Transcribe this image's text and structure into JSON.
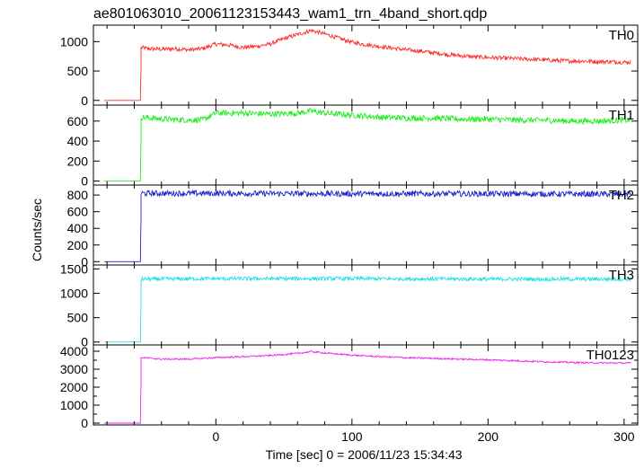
{
  "chart_data": {
    "type": "line",
    "title": "ae801063010_20061123153443_wam1_trn_4band_short.qdp",
    "xlabel": "Time [sec] 0 = 2006/11/23 15:34:43",
    "ylabel": "Counts/sec",
    "xlim": [
      -90,
      310
    ],
    "xticks": [
      0,
      100,
      200,
      300
    ],
    "onset_time": -55,
    "panels": [
      {
        "name": "TH0",
        "color": "#ff2a2a",
        "ylim": [
          -80,
          1280
        ],
        "yticks": [
          0,
          500,
          1000
        ],
        "pre_level": 0,
        "x": [
          -55,
          -50,
          -40,
          -30,
          -20,
          -10,
          0,
          10,
          20,
          30,
          40,
          50,
          60,
          70,
          80,
          90,
          100,
          110,
          120,
          130,
          140,
          150,
          160,
          170,
          180,
          190,
          200,
          210,
          220,
          230,
          240,
          250,
          260,
          270,
          280,
          290,
          300,
          305
        ],
        "y": [
          900,
          880,
          870,
          880,
          860,
          880,
          960,
          940,
          900,
          920,
          960,
          1050,
          1120,
          1190,
          1130,
          1060,
          990,
          950,
          920,
          890,
          860,
          840,
          810,
          780,
          760,
          740,
          730,
          720,
          710,
          700,
          690,
          680,
          670,
          670,
          660,
          660,
          650,
          650
        ],
        "noise": 35
      },
      {
        "name": "TH1",
        "color": "#22ee22",
        "ylim": [
          -40,
          760
        ],
        "yticks": [
          0,
          200,
          400,
          600
        ],
        "pre_level": 0,
        "x": [
          -55,
          -40,
          -20,
          -10,
          0,
          20,
          40,
          60,
          70,
          80,
          100,
          120,
          140,
          160,
          180,
          200,
          220,
          240,
          260,
          280,
          300,
          305
        ],
        "y": [
          640,
          620,
          610,
          610,
          680,
          680,
          670,
          680,
          700,
          680,
          660,
          640,
          630,
          630,
          620,
          620,
          610,
          610,
          600,
          600,
          610,
          610
        ],
        "noise": 30
      },
      {
        "name": "TH2",
        "color": "#2020cc",
        "ylim": [
          -40,
          920
        ],
        "yticks": [
          0,
          200,
          400,
          600,
          800
        ],
        "pre_level": 0,
        "x": [
          -55,
          0,
          100,
          200,
          305
        ],
        "y": [
          820,
          820,
          815,
          815,
          810
        ],
        "noise": 35
      },
      {
        "name": "TH3",
        "color": "#22e0e0",
        "ylim": [
          -60,
          1580
        ],
        "yticks": [
          0,
          500,
          1000,
          1500
        ],
        "pre_level": 0,
        "x": [
          -55,
          0,
          100,
          200,
          305
        ],
        "y": [
          1290,
          1300,
          1300,
          1290,
          1290
        ],
        "noise": 40
      },
      {
        "name": "TH0123",
        "color": "#ee22ee",
        "ylim": [
          -100,
          4350
        ],
        "yticks": [
          0,
          500,
          1000,
          1500,
          2000,
          2500,
          3000,
          3500,
          4000
        ],
        "ytick_labels": [
          0,
          1000,
          2000,
          3000,
          4000
        ],
        "pre_level": 0,
        "x": [
          -55,
          -40,
          -20,
          0,
          20,
          40,
          60,
          70,
          80,
          100,
          120,
          140,
          160,
          180,
          200,
          220,
          240,
          260,
          280,
          300,
          305
        ],
        "y": [
          3650,
          3560,
          3560,
          3640,
          3700,
          3760,
          3880,
          3980,
          3900,
          3780,
          3700,
          3640,
          3600,
          3560,
          3520,
          3470,
          3420,
          3380,
          3350,
          3340,
          3340
        ],
        "noise": 45
      }
    ]
  }
}
